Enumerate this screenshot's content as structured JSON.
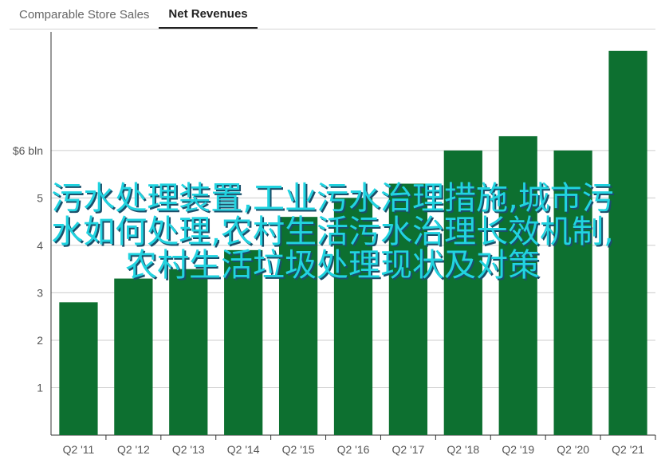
{
  "tabs": [
    {
      "label": "Comparable Store Sales",
      "active": false
    },
    {
      "label": "Net Revenues",
      "active": true
    }
  ],
  "overlay": {
    "lines": [
      "污水处理装置,工业污水治理措施,城市污",
      "水如何处理,农村生活污水治理长效机制,",
      "农村生活垃圾处理现状及对策"
    ]
  },
  "colors": {
    "bar": "#0d7030",
    "grid": "#cccccc",
    "axis": "#333333",
    "overlay_text": "#21d3e0"
  },
  "chart_data": {
    "type": "bar",
    "title": "Net Revenues",
    "categories": [
      "Q2 '11",
      "Q2 '12",
      "Q2 '13",
      "Q2 '14",
      "Q2 '15",
      "Q2 '16",
      "Q2 '17",
      "Q2 '18",
      "Q2 '19",
      "Q2 '20",
      "Q2 '21"
    ],
    "values": [
      2.8,
      3.3,
      3.5,
      3.9,
      4.6,
      5.0,
      5.3,
      6.0,
      6.3,
      6.0,
      8.1
    ],
    "ylim": [
      0,
      8.5
    ],
    "yticks": [
      {
        "value": 1,
        "label": "1"
      },
      {
        "value": 2,
        "label": "2"
      },
      {
        "value": 3,
        "label": "3"
      },
      {
        "value": 4,
        "label": "4"
      },
      {
        "value": 5,
        "label": "5"
      },
      {
        "value": 6,
        "label": "$6 bln"
      }
    ],
    "grid": true
  }
}
